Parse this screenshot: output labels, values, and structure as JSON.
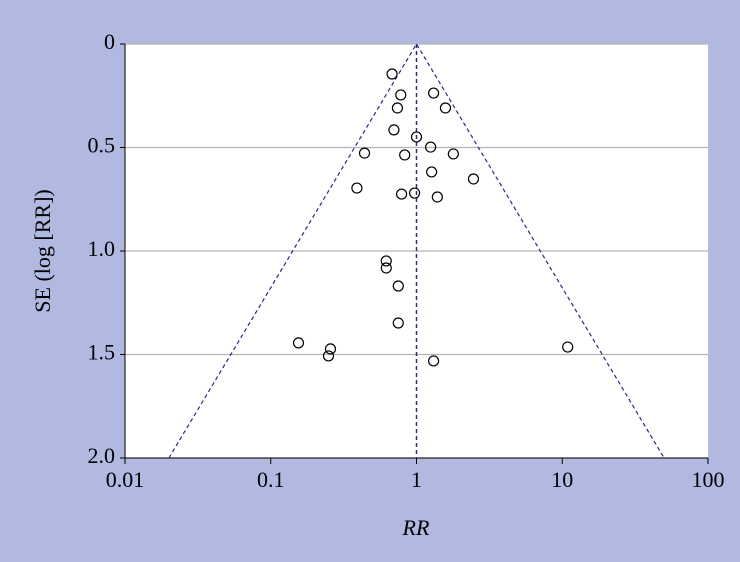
{
  "chart_data": {
    "type": "scatter",
    "x_label": "RR",
    "y_label": "SE (log [RR])",
    "x": [
      0.68,
      1.31,
      0.78,
      1.58,
      0.74,
      0.7,
      1.0,
      0.44,
      1.25,
      0.83,
      1.79,
      1.27,
      2.46,
      0.39,
      0.79,
      0.97,
      1.39,
      0.62,
      0.62,
      0.75,
      0.75,
      0.155,
      0.257,
      0.249,
      10.9,
      1.31
    ],
    "values": [
      0.145,
      0.237,
      0.246,
      0.309,
      0.309,
      0.415,
      0.449,
      0.527,
      0.498,
      0.536,
      0.531,
      0.618,
      0.652,
      0.696,
      0.725,
      0.72,
      0.739,
      1.048,
      1.082,
      1.169,
      1.348,
      1.444,
      1.473,
      1.507,
      1.464,
      1.531
    ],
    "color": "#000000",
    "xlim": [
      0.01,
      100
    ],
    "x_log": true,
    "xticks": [
      0.01,
      0.1,
      1,
      10,
      100
    ],
    "ylim": [
      0,
      2
    ],
    "y_inverted": true,
    "yticks": [
      0,
      0.5,
      {
        "value": 1,
        "label": "1.0"
      },
      {
        "value": 1.5,
        "label": "1.5"
      },
      {
        "value": 2,
        "label": "2.0"
      }
    ],
    "grid": true,
    "funnel": {
      "x": [
        0.02,
        1,
        50
      ],
      "y": [
        2,
        0,
        2
      ],
      "center": 1,
      "color": "#2a2a8a"
    }
  }
}
